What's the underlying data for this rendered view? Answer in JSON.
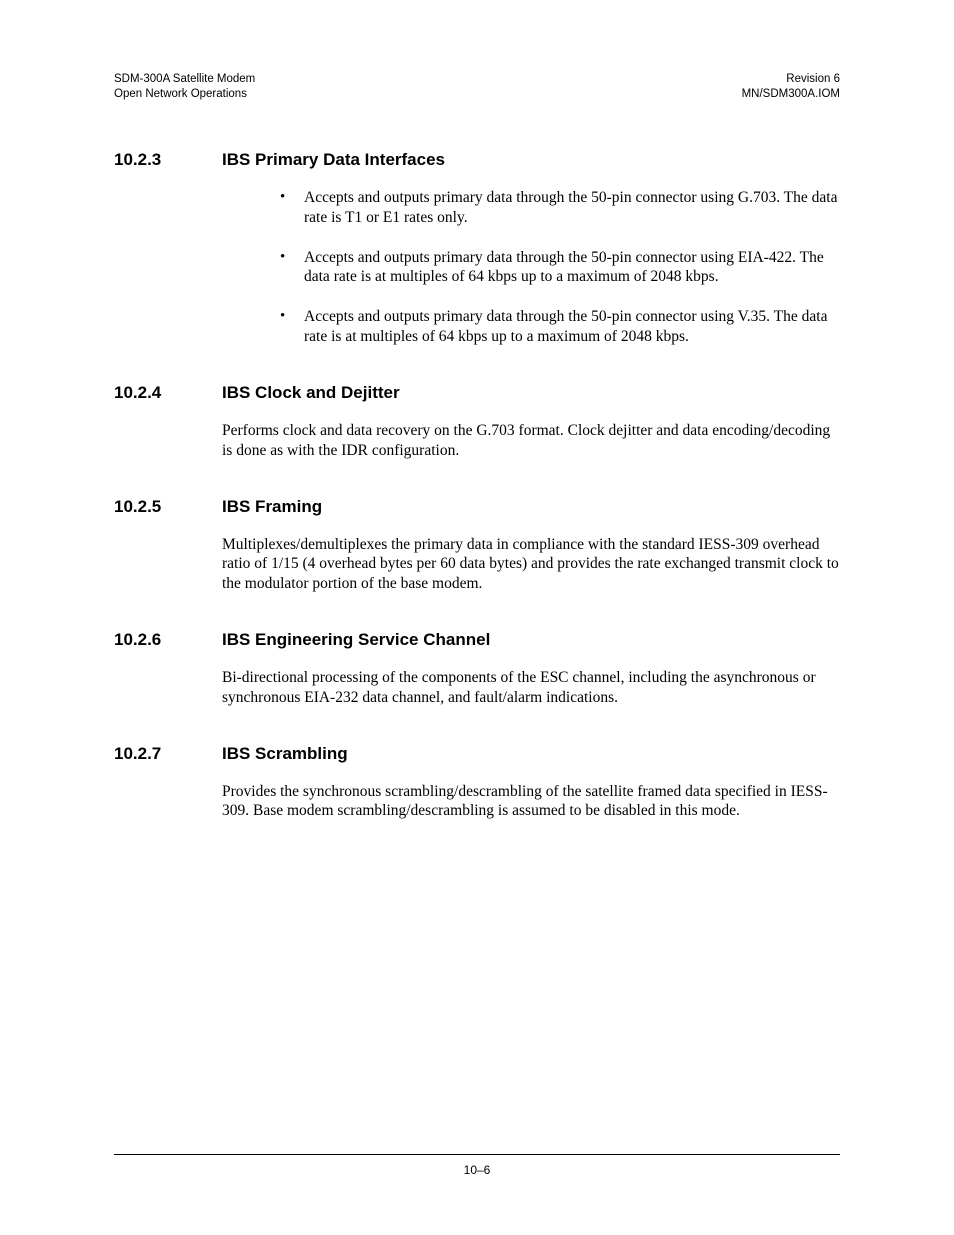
{
  "header": {
    "left_line1": "SDM-300A Satellite Modem",
    "left_line2": "Open Network Operations",
    "right_line1": "Revision 6",
    "right_line2": "MN/SDM300A.IOM"
  },
  "sections": {
    "s1": {
      "number": "10.2.3",
      "title": "IBS Primary Data Interfaces",
      "bullets": [
        "Accepts and outputs primary data through the 50-pin connector using G.703. The data rate is T1 or E1 rates only.",
        "Accepts and outputs primary data through the 50-pin connector using EIA-422. The data rate is at multiples of 64 kbps up to a maximum of 2048 kbps.",
        "Accepts and outputs primary data through the 50-pin connector using V.35. The data rate is at multiples of 64 kbps up to a maximum of 2048 kbps."
      ]
    },
    "s2": {
      "number": "10.2.4",
      "title": "IBS Clock and Dejitter",
      "para": "Performs clock and data recovery on the G.703 format. Clock dejitter and data encoding/decoding is done as with the IDR configuration."
    },
    "s3": {
      "number": "10.2.5",
      "title": "IBS Framing",
      "para": "Multiplexes/demultiplexes the primary data in compliance with the standard IESS-309 overhead ratio of 1/15 (4 overhead bytes per 60 data bytes) and provides the rate exchanged transmit clock to the modulator portion of the base modem."
    },
    "s4": {
      "number": "10.2.6",
      "title": "IBS Engineering Service Channel",
      "para": "Bi-directional processing of the components of the ESC channel, including the asynchronous or synchronous EIA-232 data channel, and fault/alarm indications."
    },
    "s5": {
      "number": "10.2.7",
      "title": "IBS Scrambling",
      "para": "Provides the synchronous scrambling/descrambling of the satellite framed data specified in IESS-309. Base modem scrambling/descrambling is assumed to be disabled in this mode."
    }
  },
  "footer": {
    "page_number": "10–6"
  }
}
